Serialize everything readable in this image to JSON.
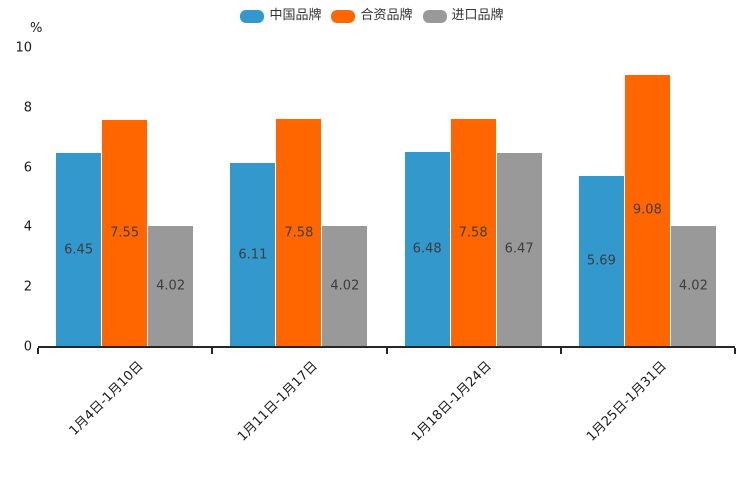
{
  "chart_data": {
    "type": "bar",
    "title": "",
    "ylabel": "%",
    "ylim": [
      0,
      10
    ],
    "y_ticks": [
      0,
      2,
      4,
      6,
      8,
      10
    ],
    "grid": false,
    "legend_position": "top",
    "categories": [
      "1月4日-1月10日",
      "1月11日-1月17日",
      "1月18日-1月24日",
      "1月25日-1月31日"
    ],
    "series": [
      {
        "name": "中国品牌",
        "color": "#3398cc",
        "values": [
          6.45,
          6.11,
          6.48,
          5.69
        ]
      },
      {
        "name": "合资品牌",
        "color": "#ff6600",
        "values": [
          7.55,
          7.58,
          7.58,
          9.08
        ]
      },
      {
        "name": "进口品牌",
        "color": "#999999",
        "values": [
          4.02,
          4.02,
          6.47,
          4.02
        ]
      }
    ],
    "value_labels_shown": true,
    "axis_color": "#262626"
  }
}
